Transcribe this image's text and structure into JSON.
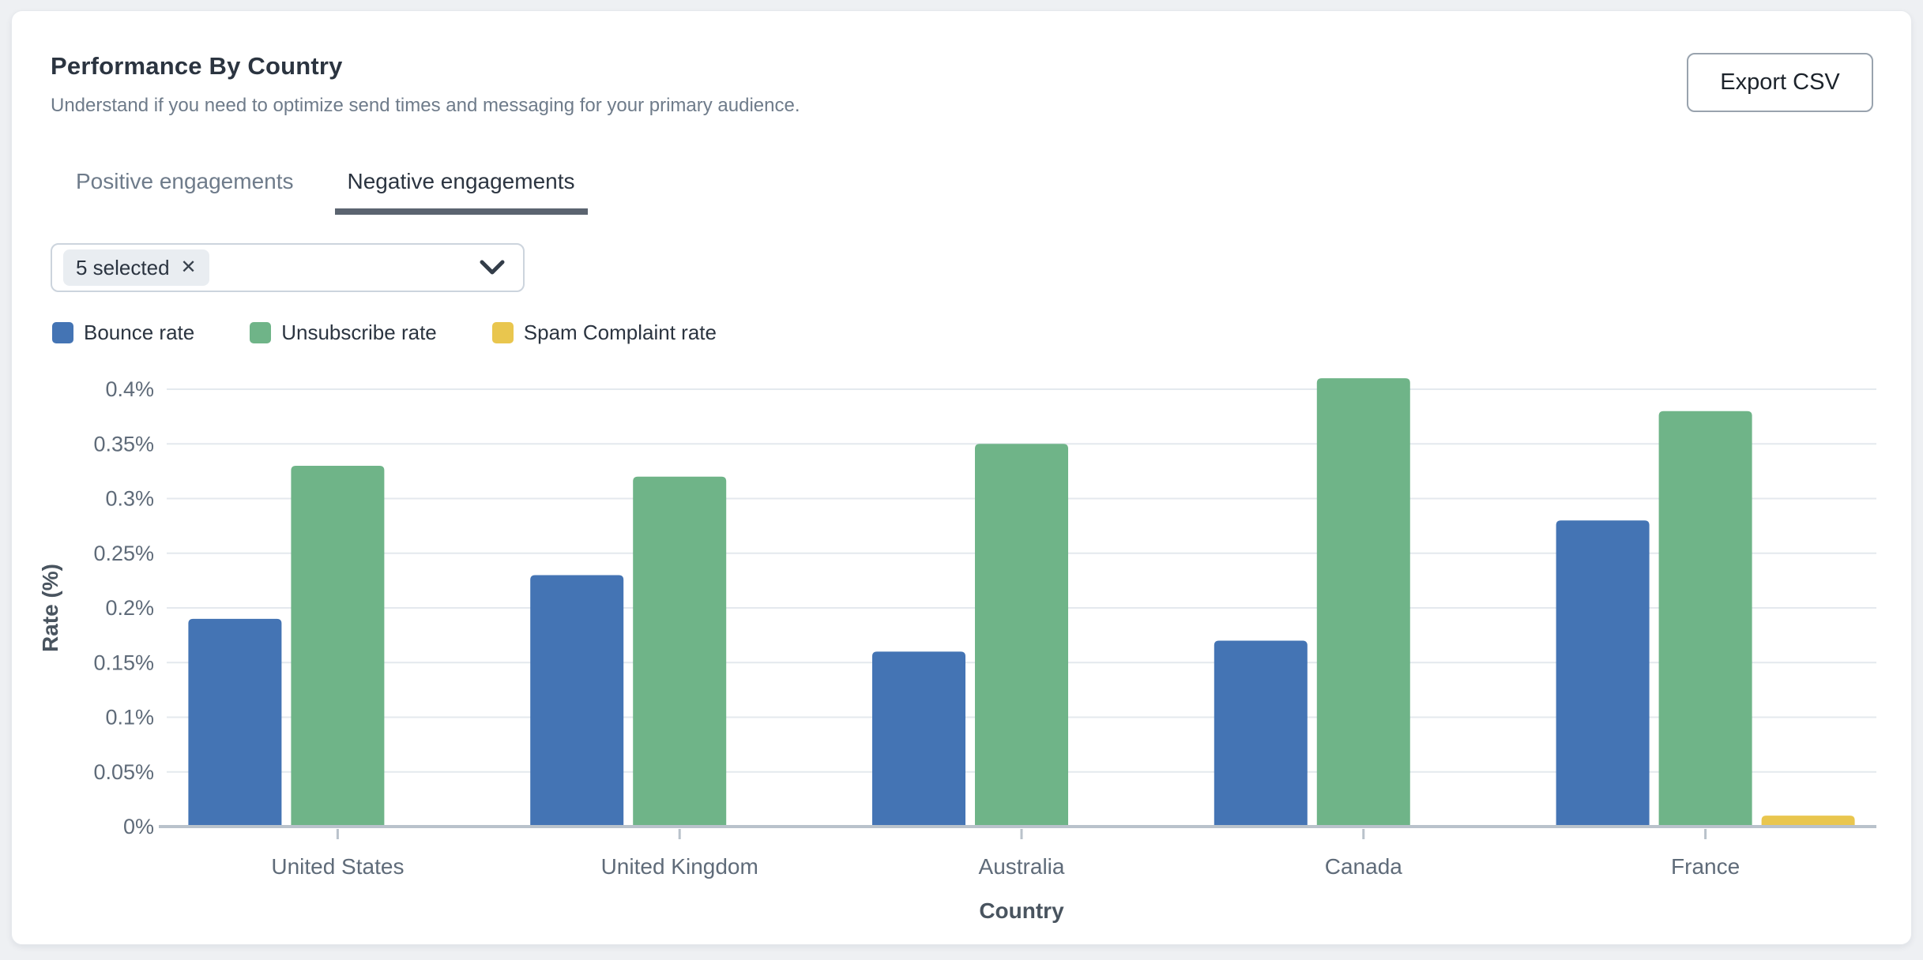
{
  "header": {
    "title": "Performance By Country",
    "subtitle": "Understand if you need to optimize send times and messaging for your primary audience.",
    "export_label": "Export CSV"
  },
  "tabs": [
    {
      "label": "Positive engagements",
      "active": false
    },
    {
      "label": "Negative engagements",
      "active": true
    }
  ],
  "filter": {
    "chip_label": "5 selected",
    "remove_icon": "✕",
    "chevron_icon": "chevron-down"
  },
  "chart_data": {
    "type": "bar",
    "categories": [
      "United States",
      "United Kingdom",
      "Australia",
      "Canada",
      "France"
    ],
    "series": [
      {
        "name": "Bounce rate",
        "color": "#4474b4",
        "values": [
          0.19,
          0.23,
          0.16,
          0.17,
          0.28
        ]
      },
      {
        "name": "Unsubscribe rate",
        "color": "#6fb488",
        "values": [
          0.33,
          0.32,
          0.35,
          0.41,
          0.38
        ]
      },
      {
        "name": "Spam Complaint rate",
        "color": "#e9c64e",
        "values": [
          0.0,
          0.0,
          0.0,
          0.0,
          0.01
        ]
      }
    ],
    "xlabel": "Country",
    "ylabel": "Rate (%)",
    "ylim": [
      0,
      0.4
    ],
    "ytick_step": 0.05,
    "ytick_labels": [
      "0%",
      "0.05%",
      "0.1%",
      "0.15%",
      "0.2%",
      "0.25%",
      "0.3%",
      "0.35%",
      "0.4%"
    ],
    "grid": true,
    "legend_position": "top"
  }
}
